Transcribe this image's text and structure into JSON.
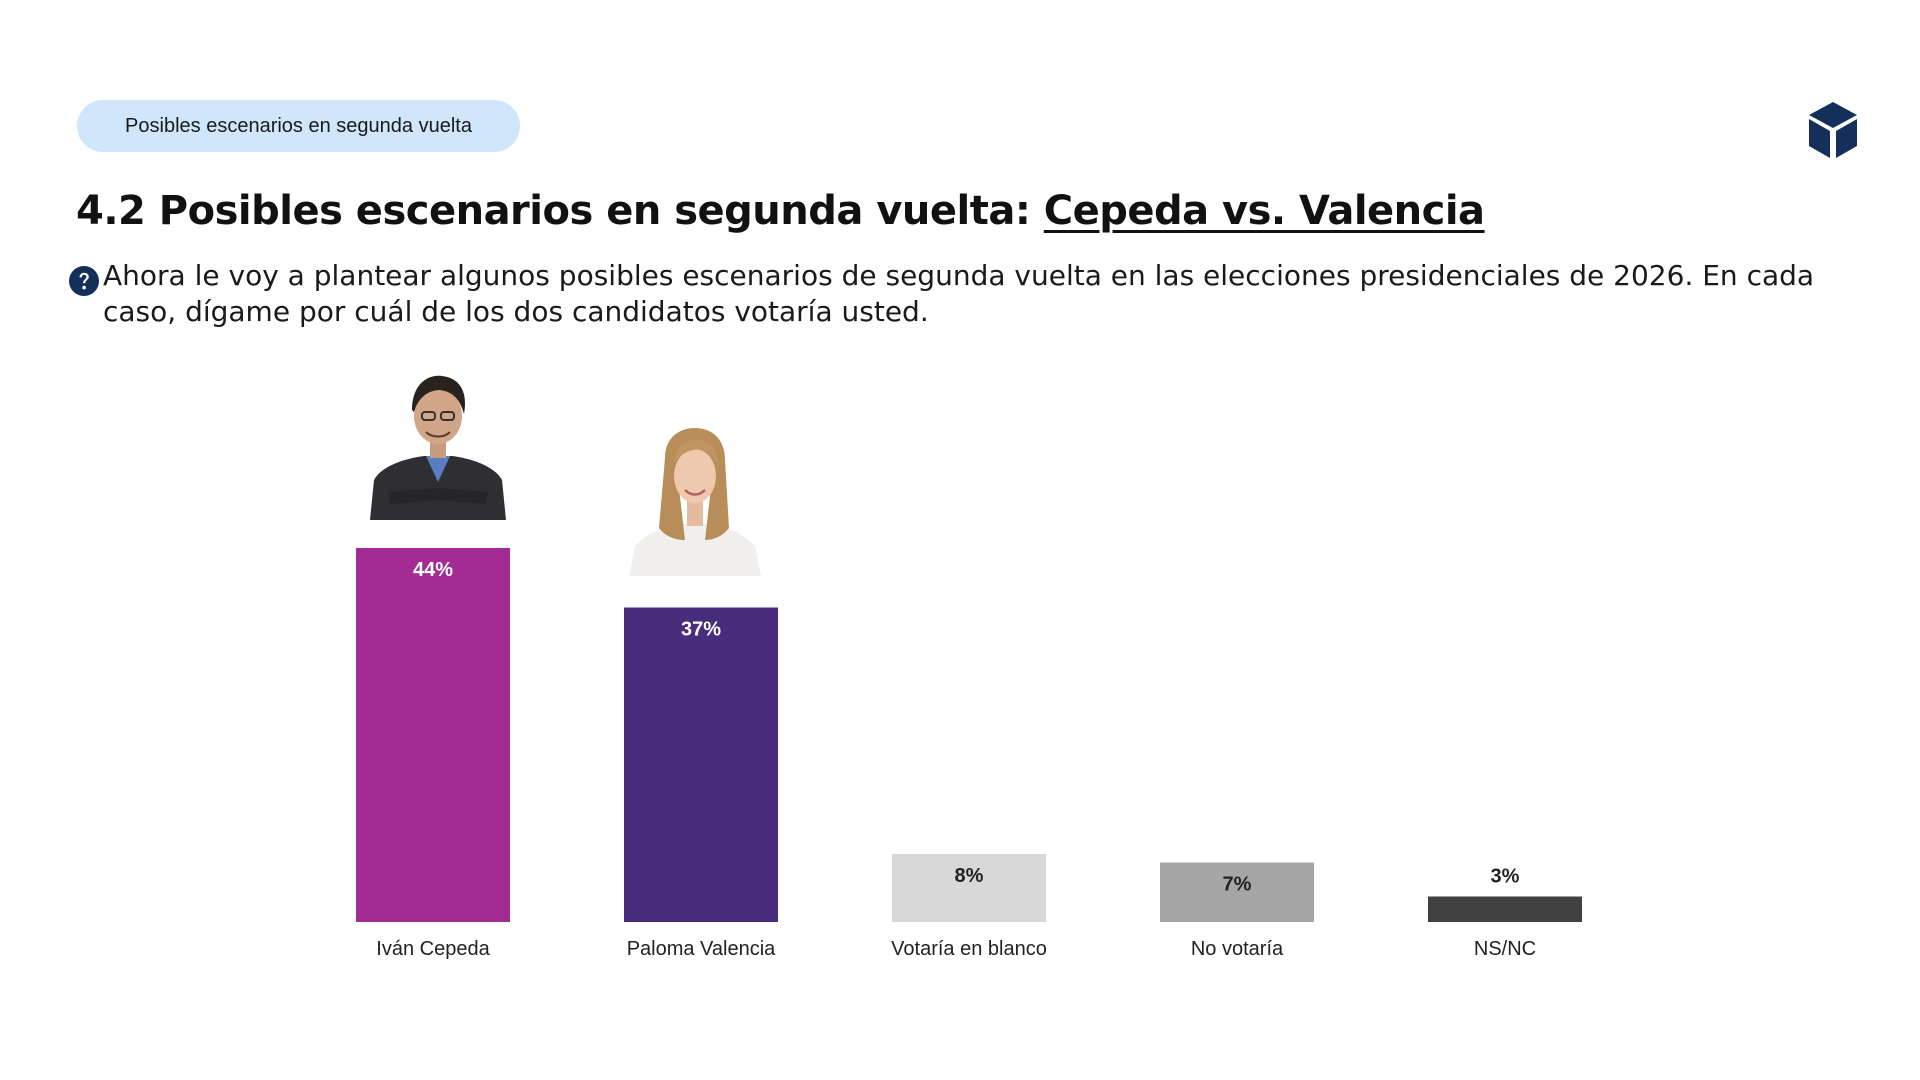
{
  "header": {
    "pill_label": "Posibles escenarios en segunda vuelta",
    "title_prefix": "4.2 Posibles escenarios en segunda vuelta: ",
    "title_highlight": "Cepeda vs. Valencia",
    "question": "Ahora le voy a plantear algunos posibles escenarios de segunda vuelta en las elecciones presidenciales de 2026. En cada caso, dígame por cuál de los dos candidatos votaría usted."
  },
  "icons": {
    "logo": "cube-logo-icon",
    "question": "question-mark-icon",
    "brand_color": "#14305a"
  },
  "chart_data": {
    "type": "bar",
    "categories": [
      "Iván Cepeda",
      "Paloma Valencia",
      "Votaría en blanco",
      "No votaría",
      "NS/NC"
    ],
    "values": [
      44,
      37,
      8,
      7,
      3
    ],
    "value_labels": [
      "44%",
      "37%",
      "8%",
      "7%",
      "3%"
    ],
    "colors": [
      "#a22c93",
      "#472d7b",
      "#d8d8d8",
      "#a6a6a6",
      "#404040"
    ],
    "label_colors": [
      "#ffffff",
      "#ffffff",
      "#222222",
      "#222222",
      "#222222"
    ],
    "label_placement": [
      "inside",
      "inside",
      "inside",
      "inside",
      "above"
    ],
    "ylim": [
      0,
      44
    ],
    "grid": false,
    "title": "",
    "xlabel": "",
    "ylabel": ""
  }
}
